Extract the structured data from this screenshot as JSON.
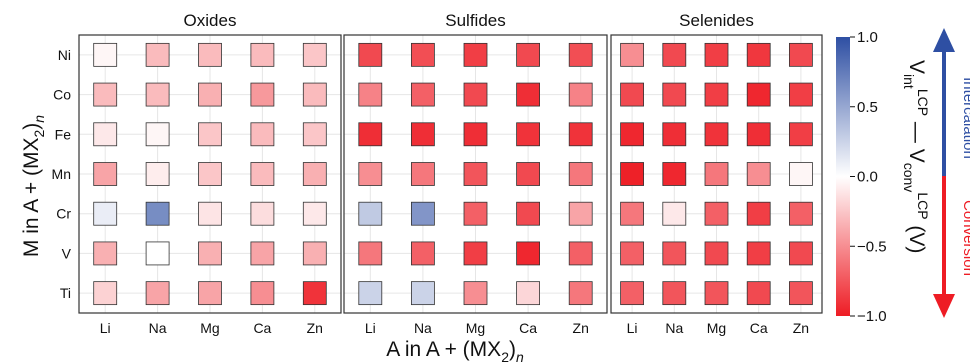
{
  "chart_data": {
    "type": "heatmap",
    "panels": [
      {
        "title": "Oxides",
        "columns": [
          "Li",
          "Na",
          "Mg",
          "Ca",
          "Zn"
        ],
        "rows": [
          "Ni",
          "Co",
          "Fe",
          "Mn",
          "Cr",
          "V",
          "Ti"
        ],
        "values": [
          [
            -0.04,
            -0.3,
            -0.3,
            -0.3,
            -0.25
          ],
          [
            -0.3,
            -0.3,
            -0.35,
            -0.45,
            -0.3
          ],
          [
            -0.1,
            -0.04,
            -0.25,
            -0.3,
            -0.25
          ],
          [
            -0.4,
            -0.08,
            -0.25,
            -0.3,
            -0.35
          ],
          [
            0.1,
            0.65,
            -0.12,
            -0.15,
            -0.1
          ],
          [
            -0.35,
            0.0,
            -0.35,
            -0.4,
            -0.35
          ],
          [
            -0.2,
            -0.4,
            -0.4,
            -0.5,
            -0.9
          ]
        ]
      },
      {
        "title": "Sulfides",
        "columns": [
          "Li",
          "Na",
          "Mg",
          "Ca",
          "Zn"
        ],
        "rows": [
          "Ni",
          "Co",
          "Fe",
          "Mn",
          "Cr",
          "V",
          "Ti"
        ],
        "values": [
          [
            -0.8,
            -0.78,
            -0.85,
            -0.8,
            -0.78
          ],
          [
            -0.55,
            -0.7,
            -0.8,
            -0.92,
            -0.55
          ],
          [
            -0.92,
            -0.92,
            -0.92,
            -0.9,
            -0.9
          ],
          [
            -0.5,
            -0.6,
            -0.75,
            -0.8,
            -0.6
          ],
          [
            0.3,
            0.6,
            -0.7,
            -0.8,
            -0.4
          ],
          [
            -0.6,
            -0.7,
            -0.85,
            -0.95,
            -0.7
          ],
          [
            0.25,
            0.25,
            -0.5,
            -0.18,
            -0.6
          ]
        ]
      },
      {
        "title": "Selenides",
        "columns": [
          "Li",
          "Na",
          "Mg",
          "Ca",
          "Zn"
        ],
        "rows": [
          "Ni",
          "Co",
          "Fe",
          "Mn",
          "Cr",
          "V",
          "Ti"
        ],
        "values": [
          [
            -0.5,
            -0.8,
            -0.85,
            -0.88,
            -0.8
          ],
          [
            -0.8,
            -0.8,
            -0.85,
            -0.95,
            -0.85
          ],
          [
            -0.95,
            -0.92,
            -0.9,
            -0.92,
            -0.85
          ],
          [
            -0.98,
            -0.95,
            -0.6,
            -0.5,
            -0.04
          ],
          [
            -0.6,
            -0.1,
            -0.7,
            -0.85,
            -0.7
          ],
          [
            -0.7,
            -0.75,
            -0.8,
            -0.85,
            -0.8
          ],
          [
            -0.7,
            -0.75,
            -0.75,
            -0.8,
            -0.75
          ]
        ]
      }
    ],
    "xlabel": "A in A + (MX2)n",
    "ylabel": "M in A + (MX2)n",
    "colorbar": {
      "label": "V_int^LCP − V_conv^LCP (V)",
      "range": [
        -1.0,
        1.0
      ],
      "ticks": [
        "1.0",
        "0.5",
        "0.0",
        "−0.5",
        "−1.0"
      ],
      "colors": {
        "low": "#ee1c24",
        "mid": "#ffffff",
        "high": "#2e4fa3"
      }
    },
    "arrow": {
      "up_label": "Intercalation",
      "down_label": "Conversion",
      "up_color": "#2e4fa3",
      "down_color": "#ee1c24"
    },
    "grid": true
  }
}
